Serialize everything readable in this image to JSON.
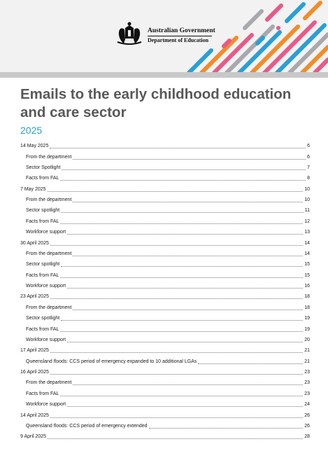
{
  "header": {
    "logo_line1": "Australian Government",
    "logo_line2": "Department of Education",
    "logo_icon": "coat-of-arms",
    "stripe_colors": [
      "#2a9fd6",
      "#e85a87",
      "#f28c28",
      "#a7a9ac"
    ]
  },
  "document": {
    "title": "Emails to the early childhood education and care sector",
    "year": "2025",
    "title_color": "#595959",
    "year_color": "#2a9fd6"
  },
  "toc": [
    {
      "label": "14 May 2025",
      "page": "6",
      "level": 1
    },
    {
      "label": "From the department",
      "page": "6",
      "level": 2
    },
    {
      "label": "Sector Spotlight",
      "page": "7",
      "level": 2
    },
    {
      "label": "Facts from FAL",
      "page": "8",
      "level": 2
    },
    {
      "label": "7 May 2025",
      "page": "10",
      "level": 1
    },
    {
      "label": "From the department",
      "page": "10",
      "level": 2
    },
    {
      "label": "Sector spotlight",
      "page": "11",
      "level": 2
    },
    {
      "label": "Facts from FAL",
      "page": "12",
      "level": 2
    },
    {
      "label": "Workforce support",
      "page": "13",
      "level": 2
    },
    {
      "label": "30 April 2025",
      "page": "14",
      "level": 1
    },
    {
      "label": "From the department",
      "page": "14",
      "level": 2
    },
    {
      "label": "Sector spotlight",
      "page": "15",
      "level": 2
    },
    {
      "label": "Facts from FAL",
      "page": "15",
      "level": 2
    },
    {
      "label": "Workforce support",
      "page": "16",
      "level": 2
    },
    {
      "label": "23 April 2025",
      "page": "18",
      "level": 1
    },
    {
      "label": "From the department",
      "page": "18",
      "level": 2
    },
    {
      "label": "Sector spotlight",
      "page": "19",
      "level": 2
    },
    {
      "label": "Facts from FAL",
      "page": "19",
      "level": 2
    },
    {
      "label": "Workforce support",
      "page": "20",
      "level": 2
    },
    {
      "label": "17 April 2025",
      "page": "21",
      "level": 1
    },
    {
      "label": "Queensland floods: CCS period of emergency expanded to 10 additional LGAs",
      "page": "21",
      "level": 2
    },
    {
      "label": "16 April 2025",
      "page": "23",
      "level": 1
    },
    {
      "label": "From the department",
      "page": "23",
      "level": 2
    },
    {
      "label": "Facts from FAL",
      "page": "23",
      "level": 2
    },
    {
      "label": "Workforce support",
      "page": "24",
      "level": 2
    },
    {
      "label": "14 April 2025",
      "page": "26",
      "level": 1
    },
    {
      "label": "Queensland floods: CCS period of emergency extended",
      "page": "26",
      "level": 2
    },
    {
      "label": "9 April 2025",
      "page": "28",
      "level": 1
    }
  ]
}
